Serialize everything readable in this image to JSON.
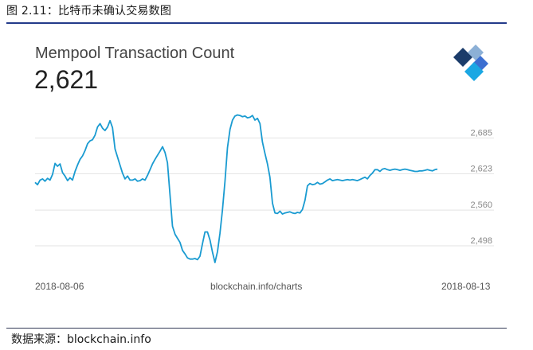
{
  "figure": {
    "caption": "图 2.11：比特币未确认交易数图",
    "source": "数据来源：blockchain.info"
  },
  "card": {
    "title": "Mempool Transaction Count",
    "value": "2,621",
    "url_label": "blockchain.info/charts",
    "logo_icon": "blockchain-logo-icon"
  },
  "colors": {
    "line": "#1a9bd1",
    "grid": "#e3e3e3",
    "rule": "#233a8a",
    "logo_dark": "#1b3c6a",
    "logo_mid": "#3c6fd1",
    "logo_light": "#1ba7e3",
    "logo_pale": "#8cb0d6"
  },
  "chart_data": {
    "type": "line",
    "title": "Mempool Transaction Count",
    "xlabel": "",
    "ylabel": "",
    "x_tick_labels": [
      "2018-08-06",
      "2018-08-13"
    ],
    "y_ticks": [
      2498,
      2560,
      2623,
      2685
    ],
    "y_tick_labels": [
      "2,498",
      "2,560",
      "2,623",
      "2,685"
    ],
    "ylim": [
      2458,
      2745
    ],
    "grid": true,
    "legend": "none",
    "series": [
      {
        "values": [
          2608,
          2604,
          2612,
          2614,
          2610,
          2615,
          2612,
          2622,
          2641,
          2636,
          2640,
          2625,
          2619,
          2611,
          2616,
          2612,
          2627,
          2638,
          2648,
          2654,
          2663,
          2675,
          2680,
          2682,
          2690,
          2704,
          2710,
          2702,
          2698,
          2704,
          2715,
          2703,
          2666,
          2652,
          2638,
          2624,
          2614,
          2619,
          2612,
          2612,
          2614,
          2610,
          2611,
          2614,
          2612,
          2620,
          2630,
          2640,
          2648,
          2655,
          2662,
          2670,
          2660,
          2642,
          2586,
          2532,
          2518,
          2511,
          2504,
          2490,
          2484,
          2477,
          2475,
          2475,
          2476,
          2474,
          2480,
          2502,
          2522,
          2522,
          2508,
          2487,
          2469,
          2488,
          2520,
          2560,
          2610,
          2668,
          2700,
          2716,
          2723,
          2725,
          2724,
          2722,
          2723,
          2720,
          2721,
          2724,
          2716,
          2719,
          2710,
          2678,
          2658,
          2640,
          2617,
          2572,
          2555,
          2554,
          2558,
          2553,
          2555,
          2556,
          2557,
          2555,
          2554,
          2556,
          2555,
          2561,
          2577,
          2602,
          2606,
          2604,
          2605,
          2608,
          2605,
          2606,
          2609,
          2612,
          2614,
          2611,
          2612,
          2613,
          2612,
          2611,
          2612,
          2613,
          2612,
          2613,
          2612,
          2611,
          2613,
          2615,
          2617,
          2614,
          2620,
          2624,
          2630,
          2630,
          2627,
          2631,
          2632,
          2630,
          2629,
          2630,
          2631,
          2630,
          2629,
          2630,
          2631,
          2630,
          2629,
          2628,
          2627,
          2627,
          2628,
          2628,
          2629,
          2630,
          2629,
          2628,
          2630,
          2631
        ]
      }
    ]
  }
}
